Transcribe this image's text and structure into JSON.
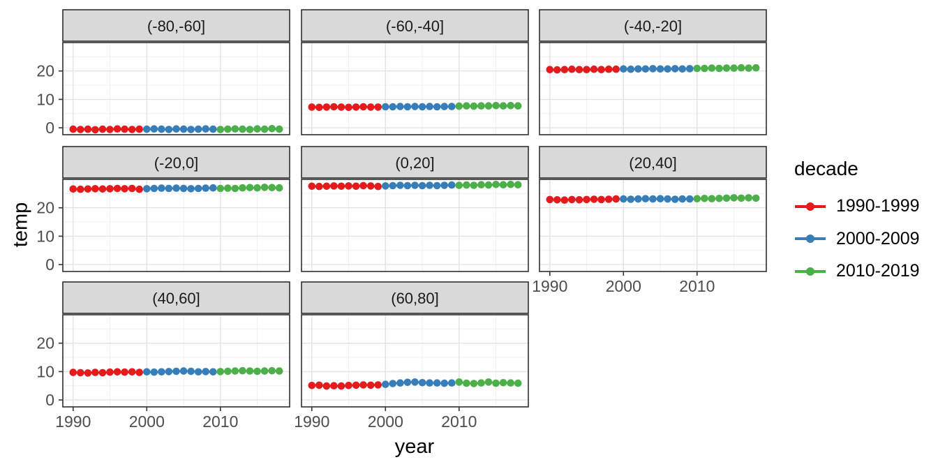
{
  "chart_data": {
    "type": "scatter",
    "title": "",
    "xlabel": "year",
    "ylabel": "temp",
    "legend_title": "decade",
    "legend_position": "right",
    "grid": true,
    "facet_layout": {
      "columns": 3,
      "rows": 3,
      "facet_count": 8
    },
    "xlim": [
      1988.6,
      2019.4
    ],
    "ylim": [
      -2.44,
      30.0
    ],
    "x_ticks": [
      1990,
      2000,
      2010
    ],
    "x_tick_labels": [
      "1990",
      "2000",
      "2010"
    ],
    "x_minor": [
      1995,
      2005,
      2015
    ],
    "y_ticks": [
      0,
      10,
      20
    ],
    "y_tick_labels": [
      "0",
      "10",
      "20"
    ],
    "y_minor": [
      5,
      15,
      25
    ],
    "years": [
      1990,
      1991,
      1992,
      1993,
      1994,
      1995,
      1996,
      1997,
      1998,
      1999,
      2000,
      2001,
      2002,
      2003,
      2004,
      2005,
      2006,
      2007,
      2008,
      2009,
      2010,
      2011,
      2012,
      2013,
      2014,
      2015,
      2016,
      2017,
      2018
    ],
    "decades": [
      {
        "label": "1990-1999",
        "from": 1990,
        "to": 1999,
        "color": "#E41A1C"
      },
      {
        "label": "2000-2009",
        "from": 2000,
        "to": 2009,
        "color": "#377EB8"
      },
      {
        "label": "2010-2019",
        "from": 2010,
        "to": 2019,
        "color": "#4DAF4A"
      }
    ],
    "facets": [
      {
        "label": "(-80,-60]",
        "values": [
          -0.5,
          -0.6,
          -0.5,
          -0.7,
          -0.5,
          -0.6,
          -0.4,
          -0.5,
          -0.6,
          -0.5,
          -0.5,
          -0.4,
          -0.5,
          -0.6,
          -0.4,
          -0.5,
          -0.6,
          -0.5,
          -0.4,
          -0.5,
          -0.6,
          -0.5,
          -0.4,
          -0.5,
          -0.6,
          -0.4,
          -0.5,
          -0.3,
          -0.5
        ]
      },
      {
        "label": "(-60,-40]",
        "values": [
          7.3,
          7.2,
          7.3,
          7.4,
          7.3,
          7.2,
          7.3,
          7.4,
          7.3,
          7.3,
          7.4,
          7.4,
          7.5,
          7.4,
          7.5,
          7.4,
          7.5,
          7.4,
          7.5,
          7.5,
          7.6,
          7.7,
          7.6,
          7.7,
          7.7,
          7.8,
          7.7,
          7.8,
          7.7
        ]
      },
      {
        "label": "(-40,-20]",
        "values": [
          20.5,
          20.4,
          20.5,
          20.6,
          20.5,
          20.5,
          20.6,
          20.5,
          20.6,
          20.6,
          20.7,
          20.6,
          20.7,
          20.7,
          20.8,
          20.7,
          20.7,
          20.8,
          20.7,
          20.8,
          20.9,
          20.9,
          21.0,
          20.9,
          21.0,
          21.0,
          21.1,
          21.0,
          21.1
        ]
      },
      {
        "label": "(-20,0]",
        "values": [
          26.6,
          26.5,
          26.6,
          26.7,
          26.6,
          26.7,
          26.8,
          26.7,
          26.8,
          26.5,
          26.7,
          26.8,
          26.9,
          26.8,
          26.9,
          26.8,
          26.7,
          26.8,
          26.9,
          27.0,
          26.8,
          26.9,
          26.8,
          27.0,
          27.1,
          27.0,
          27.2,
          27.1,
          27.0
        ]
      },
      {
        "label": "(0,20]",
        "values": [
          27.6,
          27.5,
          27.6,
          27.7,
          27.6,
          27.7,
          27.6,
          27.8,
          27.7,
          27.5,
          27.7,
          27.8,
          27.9,
          27.8,
          27.9,
          27.8,
          27.9,
          27.8,
          27.9,
          28.0,
          27.9,
          28.0,
          27.9,
          28.1,
          28.0,
          28.2,
          28.1,
          28.2,
          28.1
        ]
      },
      {
        "label": "(20,40]",
        "values": [
          22.9,
          22.8,
          22.7,
          22.9,
          22.8,
          22.9,
          23.0,
          22.9,
          23.0,
          23.1,
          23.1,
          23.0,
          23.1,
          23.2,
          23.1,
          23.2,
          23.1,
          23.0,
          23.1,
          23.1,
          23.2,
          23.3,
          23.2,
          23.3,
          23.4,
          23.5,
          23.4,
          23.5,
          23.4
        ]
      },
      {
        "label": "(40,60]",
        "values": [
          9.7,
          9.6,
          9.5,
          9.7,
          9.6,
          9.8,
          9.9,
          9.8,
          9.9,
          9.7,
          9.9,
          9.8,
          9.9,
          10.0,
          10.1,
          10.2,
          10.1,
          9.9,
          10.0,
          9.9,
          10.0,
          10.1,
          10.2,
          10.3,
          10.2,
          10.1,
          10.2,
          10.3,
          10.2
        ]
      },
      {
        "label": "(60,80]",
        "values": [
          5.1,
          5.2,
          4.9,
          5.0,
          4.9,
          5.1,
          5.2,
          5.3,
          5.2,
          5.3,
          5.5,
          5.8,
          6.0,
          6.2,
          6.3,
          6.1,
          6.0,
          6.0,
          5.9,
          6.0,
          6.3,
          5.9,
          5.8,
          6.0,
          6.3,
          5.9,
          6.1,
          6.0,
          5.9
        ]
      }
    ],
    "style": {
      "strip_fill": "#D9D9D9",
      "strip_text_color": "#1A1A1A",
      "panel_border": "#2E2E2E",
      "grid_major": "#E3E3E3",
      "grid_minor": "#F0F0F0",
      "tick_color": "#333333",
      "tick_label_color": "#4D4D4D",
      "axis_title_color": "#000000"
    }
  }
}
